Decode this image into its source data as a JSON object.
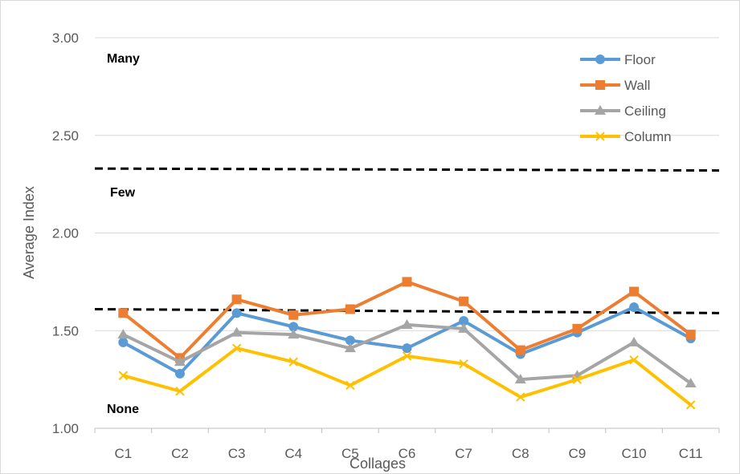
{
  "chart_data": {
    "type": "line",
    "xlabel": "Collages",
    "ylabel": "Average Index",
    "ylim": [
      1.0,
      3.0
    ],
    "yticks": [
      "1.00",
      "1.50",
      "2.00",
      "2.50",
      "3.00"
    ],
    "categories": [
      "C1",
      "C2",
      "C3",
      "C4",
      "C5",
      "C6",
      "C7",
      "C8",
      "C9",
      "C10",
      "C11"
    ],
    "grid": "horizontal",
    "legend_position": "top-right",
    "series": [
      {
        "name": "Floor",
        "color": "#5B9BD5",
        "marker": "circle",
        "values": [
          1.44,
          1.28,
          1.59,
          1.52,
          1.45,
          1.41,
          1.55,
          1.38,
          1.49,
          1.62,
          1.46
        ]
      },
      {
        "name": "Wall",
        "color": "#ED7D31",
        "marker": "square",
        "values": [
          1.59,
          1.36,
          1.66,
          1.58,
          1.61,
          1.75,
          1.65,
          1.4,
          1.51,
          1.7,
          1.48
        ]
      },
      {
        "name": "Ceiling",
        "color": "#A5A5A5",
        "marker": "triangle",
        "values": [
          1.48,
          1.34,
          1.49,
          1.48,
          1.41,
          1.53,
          1.51,
          1.25,
          1.27,
          1.44,
          1.23
        ]
      },
      {
        "name": "Column",
        "color": "#FFC000",
        "marker": "x",
        "values": [
          1.27,
          1.19,
          1.41,
          1.34,
          1.22,
          1.37,
          1.33,
          1.16,
          1.25,
          1.35,
          1.12
        ]
      }
    ],
    "zones": [
      {
        "label": "Many"
      },
      {
        "label": "Few"
      },
      {
        "label": "None"
      }
    ],
    "threshold_lines": [
      {
        "y_start": 2.33,
        "y_end": 2.32
      },
      {
        "y_start": 1.61,
        "y_end": 1.59
      }
    ]
  }
}
